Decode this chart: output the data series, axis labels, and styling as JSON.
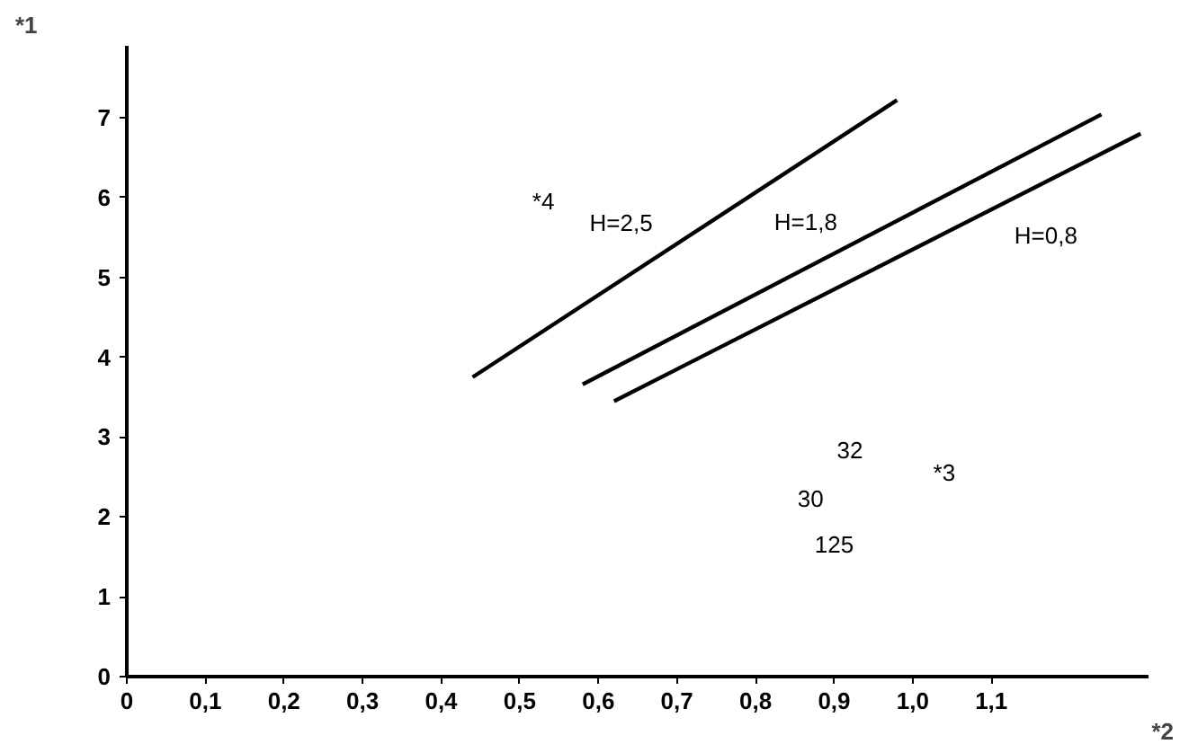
{
  "chart_data": {
    "type": "line",
    "xlabel": "*2",
    "ylabel": "*1",
    "series": [
      {
        "name": "H=2,5",
        "color": "#000000",
        "x": [
          0.44,
          0.98
        ],
        "values": [
          3.75,
          7.22
        ]
      },
      {
        "name": "H=1,8",
        "color": "#000000",
        "x": [
          0.58,
          1.24
        ],
        "values": [
          3.66,
          7.04
        ]
      },
      {
        "name": "H=0,8",
        "color": "#000000",
        "x": [
          0.62,
          1.29
        ],
        "values": [
          3.45,
          6.8
        ]
      }
    ],
    "xlim": [
      0,
      1.3
    ],
    "ylim": [
      0,
      7.9
    ],
    "xticks": [
      0,
      {
        "value": 0.1,
        "label": "0,1"
      },
      {
        "value": 0.2,
        "label": "0,2"
      },
      {
        "value": 0.3,
        "label": "0,3"
      },
      {
        "value": 0.4,
        "label": "0,4"
      },
      {
        "value": 0.5,
        "label": "0,5"
      },
      {
        "value": 0.6,
        "label": "0,6"
      },
      {
        "value": 0.7,
        "label": "0,7"
      },
      {
        "value": 0.8,
        "label": "0,8"
      },
      {
        "value": 0.9,
        "label": "0,9"
      },
      {
        "value": 1.0,
        "label": "1,0"
      },
      {
        "value": 1.1,
        "label": "1,1"
      }
    ],
    "yticks": [
      0,
      1,
      2,
      3,
      4,
      5,
      6,
      7
    ],
    "marker": "none",
    "line_style": "solid",
    "annotations": [
      "*4",
      "32",
      "30",
      "125",
      "*3"
    ]
  }
}
